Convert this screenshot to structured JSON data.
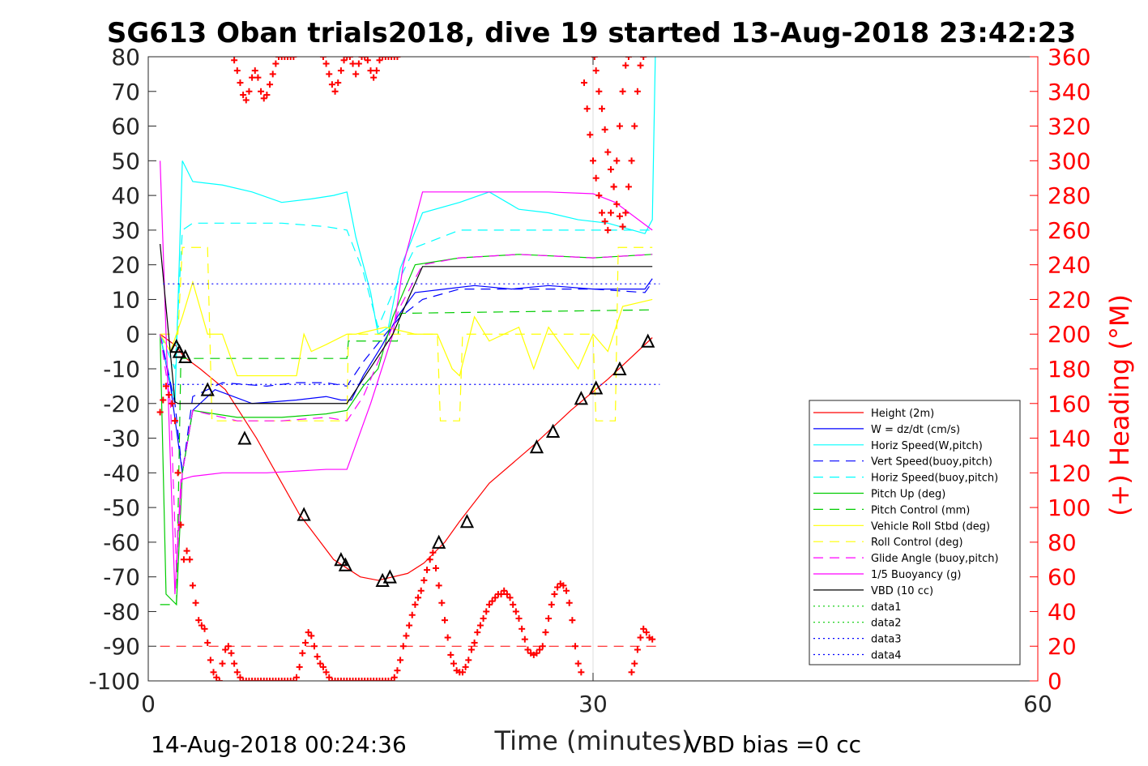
{
  "chart_data": {
    "type": "line",
    "title": "SG613 Oban trials2018, dive 19 started 13-Aug-2018 23:42:23",
    "xlabel": "Time (minutes)",
    "ylabel_right": "(+) Heading (°M)",
    "footer_left": "14-Aug-2018 00:24:36",
    "footer_right": "VBD bias =0 cc",
    "xlim": [
      0,
      60
    ],
    "ylim": [
      -100,
      80
    ],
    "ylim_right": [
      0,
      360
    ],
    "x_ticks": [
      0,
      30,
      60
    ],
    "y_ticks": [
      -100,
      -90,
      -80,
      -70,
      -60,
      -50,
      -40,
      -30,
      -20,
      -10,
      0,
      10,
      20,
      30,
      40,
      50,
      60,
      70,
      80
    ],
    "y_ticks_right": [
      0,
      20,
      40,
      60,
      80,
      100,
      120,
      140,
      160,
      180,
      200,
      220,
      240,
      260,
      280,
      300,
      320,
      340,
      360
    ],
    "grid": "x-only",
    "legend_position": "bottom-right",
    "colors": {
      "axis": "#262626",
      "right_axis": "#ff0000",
      "grid": "#dcdcdc"
    },
    "series": [
      {
        "name": "Height (2m)",
        "color": "#ff0000",
        "dash": "solid",
        "x": [
          0.8,
          1.9,
          2.4,
          3.5,
          5.2,
          7.3,
          10.2,
          12.5,
          14.3,
          15.5,
          16.5,
          17.5,
          18.6,
          20.0,
          21.0,
          23.0,
          26.0,
          28.5,
          31.0,
          34.0
        ],
        "y": [
          0,
          -3.5,
          -6.5,
          -10,
          -16,
          -30,
          -52,
          -65,
          -70,
          -71,
          -70,
          -69,
          -66,
          -60,
          -54,
          -43,
          -32,
          -22,
          -13,
          -1
        ]
      },
      {
        "name": "W = dz/dt (cm/s)",
        "color": "#0000ff",
        "dash": "solid",
        "x": [
          0.8,
          1.5,
          2.3,
          3.0,
          4.5,
          7.0,
          10.0,
          12.0,
          13.0,
          13.7,
          14.5,
          15.8,
          16.8,
          18.0,
          20.0,
          22.0,
          24.5,
          27.0,
          30.0,
          32.0,
          33.5,
          34.0
        ],
        "y": [
          0,
          -15,
          -40,
          -22,
          -16,
          -20,
          -19,
          -18,
          -19,
          -19,
          -12,
          -3,
          5,
          12,
          13,
          14,
          13,
          14,
          13,
          13,
          13,
          16
        ]
      },
      {
        "name": "Horiz Speed(W,pitch)",
        "color": "#00ffff",
        "dash": "solid",
        "x": [
          0.8,
          1.8,
          2.3,
          3.0,
          5.0,
          7.0,
          9.0,
          11.0,
          12.5,
          13.4,
          14.0,
          15.0,
          15.5,
          16.2,
          17.0,
          18.5,
          21.0,
          23.0,
          25.0,
          27.0,
          29.0,
          31.0,
          33.5,
          34.0,
          34.2
        ],
        "y": [
          0,
          -20,
          50,
          44,
          43,
          41,
          38,
          39,
          40,
          41,
          28,
          12,
          0,
          2,
          19,
          35,
          38,
          41,
          36,
          35,
          33,
          32,
          29,
          33,
          80
        ]
      },
      {
        "name": "Vert Speed(buoy,pitch)",
        "color": "#0000ff",
        "dash": "dash",
        "x": [
          0.8,
          1.8,
          2.3,
          3.0,
          5.0,
          8.0,
          10.0,
          12.0,
          13.4,
          14.5,
          16.0,
          17.0,
          18.5,
          21.0,
          25.0,
          30.0,
          33.5,
          34.0
        ],
        "y": [
          0,
          -20,
          -40,
          -18,
          -14,
          -15,
          -14,
          -14,
          -15,
          -8,
          0,
          5,
          10,
          13,
          13,
          13,
          12,
          15
        ]
      },
      {
        "name": "Horiz Speed(buoy,pitch)",
        "color": "#00ffff",
        "dash": "dash",
        "x": [
          0.8,
          1.8,
          2.3,
          3.0,
          6.0,
          9.0,
          12.0,
          13.4,
          14.5,
          15.5,
          16.5,
          18.0,
          21.0,
          25.0,
          30.0,
          34.0
        ],
        "y": [
          0,
          -10,
          30,
          32,
          32,
          32,
          31,
          30,
          18,
          2,
          12,
          25,
          30,
          30,
          30,
          30
        ]
      },
      {
        "name": "Pitch Up (deg)",
        "color": "#00cc00",
        "dash": "solid",
        "x": [
          0.8,
          1.2,
          1.9,
          2.3,
          3.0,
          6.0,
          9.0,
          12.0,
          13.4,
          14.5,
          15.5,
          16.5,
          18.0,
          21.0,
          25.0,
          30.0,
          34.0
        ],
        "y": [
          0,
          -75,
          -78,
          -40,
          -22,
          -24,
          -24,
          -23,
          -22,
          -15,
          -10,
          5,
          20,
          22,
          23,
          22,
          23
        ]
      },
      {
        "name": "Pitch Control (mm)",
        "color": "#00cc00",
        "dash": "dash",
        "x": [
          0.8,
          1.0,
          1.9,
          2.2,
          13.4,
          13.5,
          16.8,
          17.0,
          34.0
        ],
        "y": [
          -78,
          -78,
          -78,
          -7,
          -7,
          -2,
          -2,
          6,
          7
        ]
      },
      {
        "name": "Vehicle Roll Stbd (deg)",
        "color": "#ffff00",
        "dash": "solid",
        "x": [
          0.8,
          1.5,
          2.3,
          3.0,
          4.0,
          5.0,
          6.0,
          8.0,
          10.0,
          10.5,
          11.0,
          12.0,
          13.4,
          14.0,
          16.0,
          18.0,
          19.5,
          20.5,
          21.0,
          22.0,
          23.0,
          25.0,
          26.0,
          27.0,
          29.0,
          30.0,
          31.0,
          32.0,
          34.0
        ],
        "y": [
          0,
          -5,
          5,
          15,
          0,
          0,
          -12,
          -12,
          -12,
          0,
          -5,
          -3,
          0,
          0,
          2,
          0,
          0,
          -10,
          -12,
          5,
          -2,
          2,
          -10,
          2,
          -10,
          0,
          -5,
          8,
          10
        ]
      },
      {
        "name": "Roll Control (deg)",
        "color": "#ffff00",
        "dash": "dash",
        "x": [
          0.8,
          2.0,
          2.3,
          4.0,
          4.3,
          13.4,
          13.5,
          19.5,
          19.7,
          21.0,
          21.2,
          30.0,
          30.2,
          31.5,
          31.7,
          34.0
        ],
        "y": [
          0,
          0,
          25,
          25,
          -25,
          -25,
          0,
          0,
          -25,
          -25,
          0,
          0,
          -25,
          -25,
          25,
          25
        ]
      },
      {
        "name": "Glide Angle (buoy,pitch)",
        "color": "#ff00ff",
        "dash": "dash",
        "x": [
          0.8,
          1.5,
          1.9,
          2.3,
          3.0,
          6.0,
          9.0,
          12.0,
          13.4,
          14.5,
          16.0,
          17.0,
          18.5,
          21.0,
          25.0,
          30.0,
          34.0
        ],
        "y": [
          0,
          -20,
          -68,
          -40,
          -22,
          -25,
          -25,
          -24,
          -25,
          -18,
          -3,
          8,
          20,
          22,
          23,
          22,
          23
        ]
      },
      {
        "name": "1/5 Buoyancy (g)",
        "color": "#ff00ff",
        "dash": "solid",
        "x": [
          0.8,
          1.2,
          1.8,
          2.2,
          3.0,
          5.0,
          8.0,
          12.0,
          13.4,
          15.0,
          16.5,
          17.2,
          18.5,
          22.0,
          27.0,
          30.0,
          31.5,
          34.0
        ],
        "y": [
          50,
          0,
          -75,
          -42,
          -41,
          -40,
          -40,
          -39,
          -39,
          -20,
          0,
          20,
          41,
          41,
          41,
          40.5,
          38,
          30
        ]
      },
      {
        "name": "VBD (10 cc)",
        "color": "#000000",
        "dash": "solid",
        "x": [
          0.8,
          1.8,
          2.0,
          13.4,
          16.5,
          17.0,
          18.5,
          34.0
        ],
        "y": [
          26,
          -19.5,
          -20,
          -20,
          0,
          5,
          19.5,
          19.5
        ]
      },
      {
        "name": "data1",
        "color": "#00cc00",
        "dash": "dot",
        "x": [],
        "y": []
      },
      {
        "name": "data2",
        "color": "#00cc00",
        "dash": "dot",
        "x": [],
        "y": []
      },
      {
        "name": "data3",
        "color": "#0000ff",
        "dash": "dot",
        "x": [
          1.0,
          34.5
        ],
        "y": [
          14.5,
          14.5
        ]
      },
      {
        "name": "data4",
        "color": "#0000ff",
        "dash": "dot",
        "x": [
          1.0,
          34.5
        ],
        "y": [
          -14.5,
          -14.5
        ]
      }
    ],
    "reference_lines": [
      {
        "color": "#ff0000",
        "dash": "dash",
        "x": [
          0.8,
          34.5
        ],
        "y": [
          -90,
          -90
        ]
      }
    ],
    "heading_points": {
      "color": "#ff0000",
      "marker": "+",
      "axis": "right",
      "x": [
        0.8,
        1.0,
        1.2,
        1.4,
        1.6,
        1.8,
        2.0,
        2.2,
        2.4,
        2.6,
        2.8,
        3.0,
        3.2,
        3.4,
        3.6,
        3.8,
        4.0,
        4.2,
        4.4,
        4.6,
        4.8,
        5.0,
        5.2,
        5.4,
        5.6,
        5.8,
        6.0,
        6.2,
        6.4,
        6.6,
        6.8,
        7.0,
        7.2,
        7.4,
        7.6,
        7.8,
        8.0,
        8.2,
        8.4,
        8.6,
        8.8,
        9.0,
        9.2,
        9.4,
        9.6,
        9.8,
        10.0,
        10.2,
        10.4,
        10.6,
        10.8,
        11.0,
        11.2,
        11.4,
        11.6,
        11.8,
        12.0,
        12.2,
        12.4,
        12.6,
        12.8,
        13.0,
        13.2,
        13.4,
        13.6,
        13.8,
        14.0,
        14.2,
        14.4,
        14.6,
        14.8,
        15.0,
        15.2,
        15.4,
        15.6,
        15.8,
        16.0,
        16.2,
        16.4,
        16.6,
        16.8,
        17.0,
        17.2,
        17.4,
        17.6,
        17.8,
        18.0,
        18.2,
        18.4,
        18.6,
        18.8,
        19.0,
        19.2,
        19.4,
        19.6,
        19.8,
        20.0,
        20.2,
        20.4,
        20.6,
        20.8,
        21.0,
        21.2,
        21.4,
        21.6,
        21.8,
        22.0,
        22.2,
        22.4,
        22.6,
        22.8,
        23.0,
        23.2,
        23.4,
        23.6,
        23.8,
        24.0,
        24.2,
        24.4,
        24.6,
        24.8,
        25.0,
        25.2,
        25.4,
        25.6,
        25.8,
        26.0,
        26.2,
        26.4,
        26.6,
        26.8,
        27.0,
        27.2,
        27.4,
        27.6,
        27.8,
        28.0,
        28.2,
        28.4,
        28.6,
        28.8,
        29.0,
        29.2,
        29.4,
        29.6,
        29.8,
        30.0,
        30.2,
        30.4,
        30.6,
        30.8,
        31.0,
        31.2,
        31.4,
        31.6,
        31.8,
        32.0,
        32.2,
        32.4,
        32.6,
        32.8,
        33.0,
        33.2,
        33.4,
        33.6,
        33.8,
        34.0
      ],
      "y": [
        155,
        162,
        170,
        165,
        160,
        150,
        120,
        90,
        70,
        75,
        70,
        55,
        45,
        35,
        32,
        30,
        22,
        12,
        5,
        2,
        0,
        10,
        18,
        20,
        16,
        10,
        5,
        2,
        0,
        0,
        0,
        0,
        0,
        0,
        0,
        0,
        0,
        0,
        0,
        0,
        0,
        0,
        0,
        0,
        0,
        0,
        2,
        8,
        16,
        22,
        28,
        26,
        20,
        14,
        10,
        8,
        5,
        2,
        0,
        0,
        0,
        0,
        0,
        0,
        0,
        0,
        0,
        0,
        0,
        0,
        0,
        0,
        0,
        0,
        0,
        0,
        0,
        0,
        0,
        2,
        6,
        12,
        20,
        26,
        32,
        38,
        44,
        48,
        52,
        58,
        64,
        70,
        74,
        65,
        55,
        45,
        35,
        25,
        15,
        10,
        6,
        5,
        5,
        8,
        12,
        18,
        22,
        28,
        32,
        36,
        40,
        44,
        46,
        48,
        50,
        50,
        52,
        50,
        48,
        44,
        40,
        36,
        30,
        24,
        18,
        16,
        15,
        16,
        18,
        20,
        28,
        36,
        44,
        50,
        54,
        56,
        55,
        52,
        45,
        35,
        20,
        10,
        5,
        345,
        330,
        315,
        300,
        290,
        280,
        270,
        265,
        260,
        270,
        285,
        300,
        320,
        340,
        355,
        360,
        5,
        10,
        18,
        25,
        30,
        28,
        25,
        24
      ]
    },
    "heading_points_top": {
      "x": [
        5.8,
        6.0,
        6.2,
        6.4,
        6.6,
        6.8,
        7.0,
        7.2,
        7.4,
        7.6,
        7.8,
        8.0,
        8.2,
        8.4,
        8.6,
        8.8,
        9.0,
        9.2,
        9.4,
        9.6,
        9.8,
        11.8,
        12.0,
        12.2,
        12.4,
        12.6,
        12.8,
        13.0,
        13.2,
        13.4,
        13.6,
        13.8,
        14.0,
        14.2,
        14.4,
        14.6,
        14.8,
        15.0,
        15.2,
        15.4,
        15.6,
        15.8,
        16.0,
        16.2,
        16.4,
        16.6,
        16.8,
        30.1,
        30.2,
        30.4,
        30.6,
        30.8,
        31.0,
        31.2,
        31.4,
        31.6,
        31.8,
        32.0,
        32.2,
        32.4,
        32.6,
        32.8,
        33.0,
        33.2,
        33.4
      ],
      "y": [
        358,
        352,
        345,
        338,
        335,
        340,
        348,
        352,
        348,
        340,
        336,
        338,
        344,
        350,
        356,
        360,
        360,
        360,
        360,
        360,
        360,
        360,
        356,
        350,
        344,
        340,
        345,
        352,
        358,
        360,
        360,
        356,
        350,
        356,
        360,
        360,
        358,
        352,
        348,
        352,
        358,
        360,
        360,
        360,
        360,
        360,
        360,
        360,
        352,
        340,
        330,
        318,
        305,
        295,
        285,
        275,
        268,
        262,
        270,
        285,
        300,
        320,
        340,
        355,
        360
      ]
    },
    "annotation_triangles": {
      "color": "#000000",
      "x": [
        1.9,
        2.1,
        2.5,
        4.0,
        6.5,
        10.5,
        13.0,
        13.3,
        15.8,
        16.3,
        19.6,
        21.5,
        26.2,
        27.3,
        29.2,
        30.2,
        31.8,
        33.7
      ],
      "y": [
        -3.5,
        -5,
        -6.5,
        -16,
        -30,
        -52,
        -65,
        -66.5,
        -71,
        -70,
        -60,
        -54,
        -32.5,
        -28,
        -18.5,
        -15.5,
        -10,
        -2
      ]
    }
  }
}
